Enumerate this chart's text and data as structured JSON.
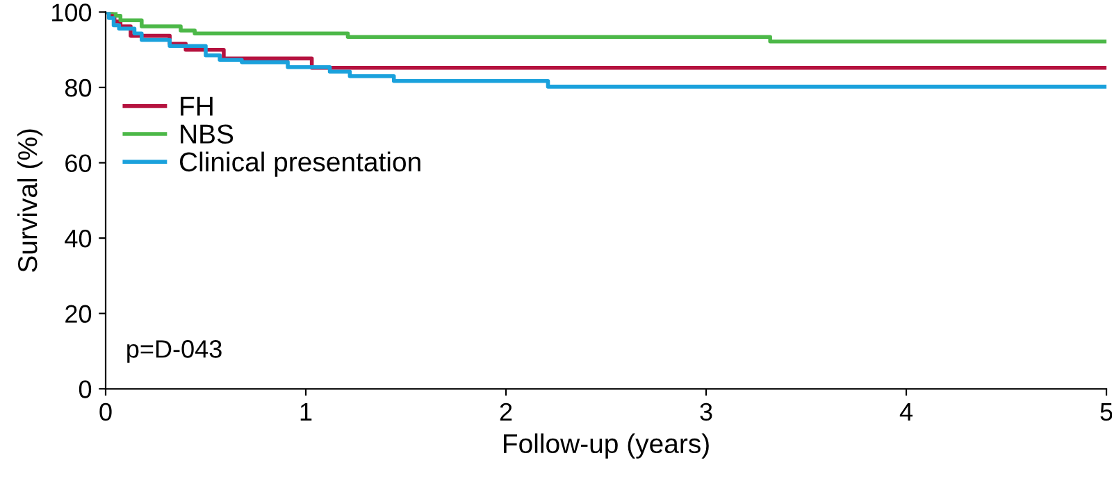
{
  "chart_data": {
    "type": "step",
    "xlabel": "Follow-up (years)",
    "ylabel": "Survival (%)",
    "xlim": [
      0,
      5
    ],
    "xticks": [
      0,
      1,
      2,
      3,
      4,
      5
    ],
    "ylim": [
      0,
      100
    ],
    "yticks": [
      0,
      20,
      40,
      60,
      80,
      100
    ],
    "grid": false,
    "legend": "center left",
    "line_style": "solid",
    "marker": "none",
    "annotations": [
      "p=D-043"
    ],
    "series": [
      {
        "name": "FH",
        "color": "#b5123f",
        "x": [
          0,
          0.03,
          0.044,
          0.074,
          0.125,
          0.32,
          0.4,
          0.59,
          1.03,
          5
        ],
        "values": [
          100,
          99.0,
          97.5,
          96.2,
          93.7,
          91.6,
          90.0,
          87.7,
          85.2,
          85.2
        ]
      },
      {
        "name": "NBS",
        "color": "#4cb848",
        "x": [
          0,
          0.05,
          0.074,
          0.18,
          0.375,
          0.445,
          1.21,
          3.32,
          5
        ],
        "values": [
          100,
          99.0,
          97.8,
          96.2,
          95.1,
          94.3,
          93.4,
          92.2,
          92.2
        ]
      },
      {
        "name": "Clinical presentation",
        "color": "#1aa1dc",
        "x": [
          0,
          0.016,
          0.04,
          0.067,
          0.144,
          0.18,
          0.32,
          0.5,
          0.57,
          0.68,
          0.91,
          1.12,
          1.22,
          1.44,
          2.21,
          5
        ],
        "values": [
          100,
          98.4,
          96.5,
          95.6,
          94.3,
          92.6,
          91.0,
          88.5,
          87.3,
          86.7,
          85.4,
          84.2,
          83.0,
          81.7,
          80.2,
          80.2
        ]
      }
    ]
  }
}
